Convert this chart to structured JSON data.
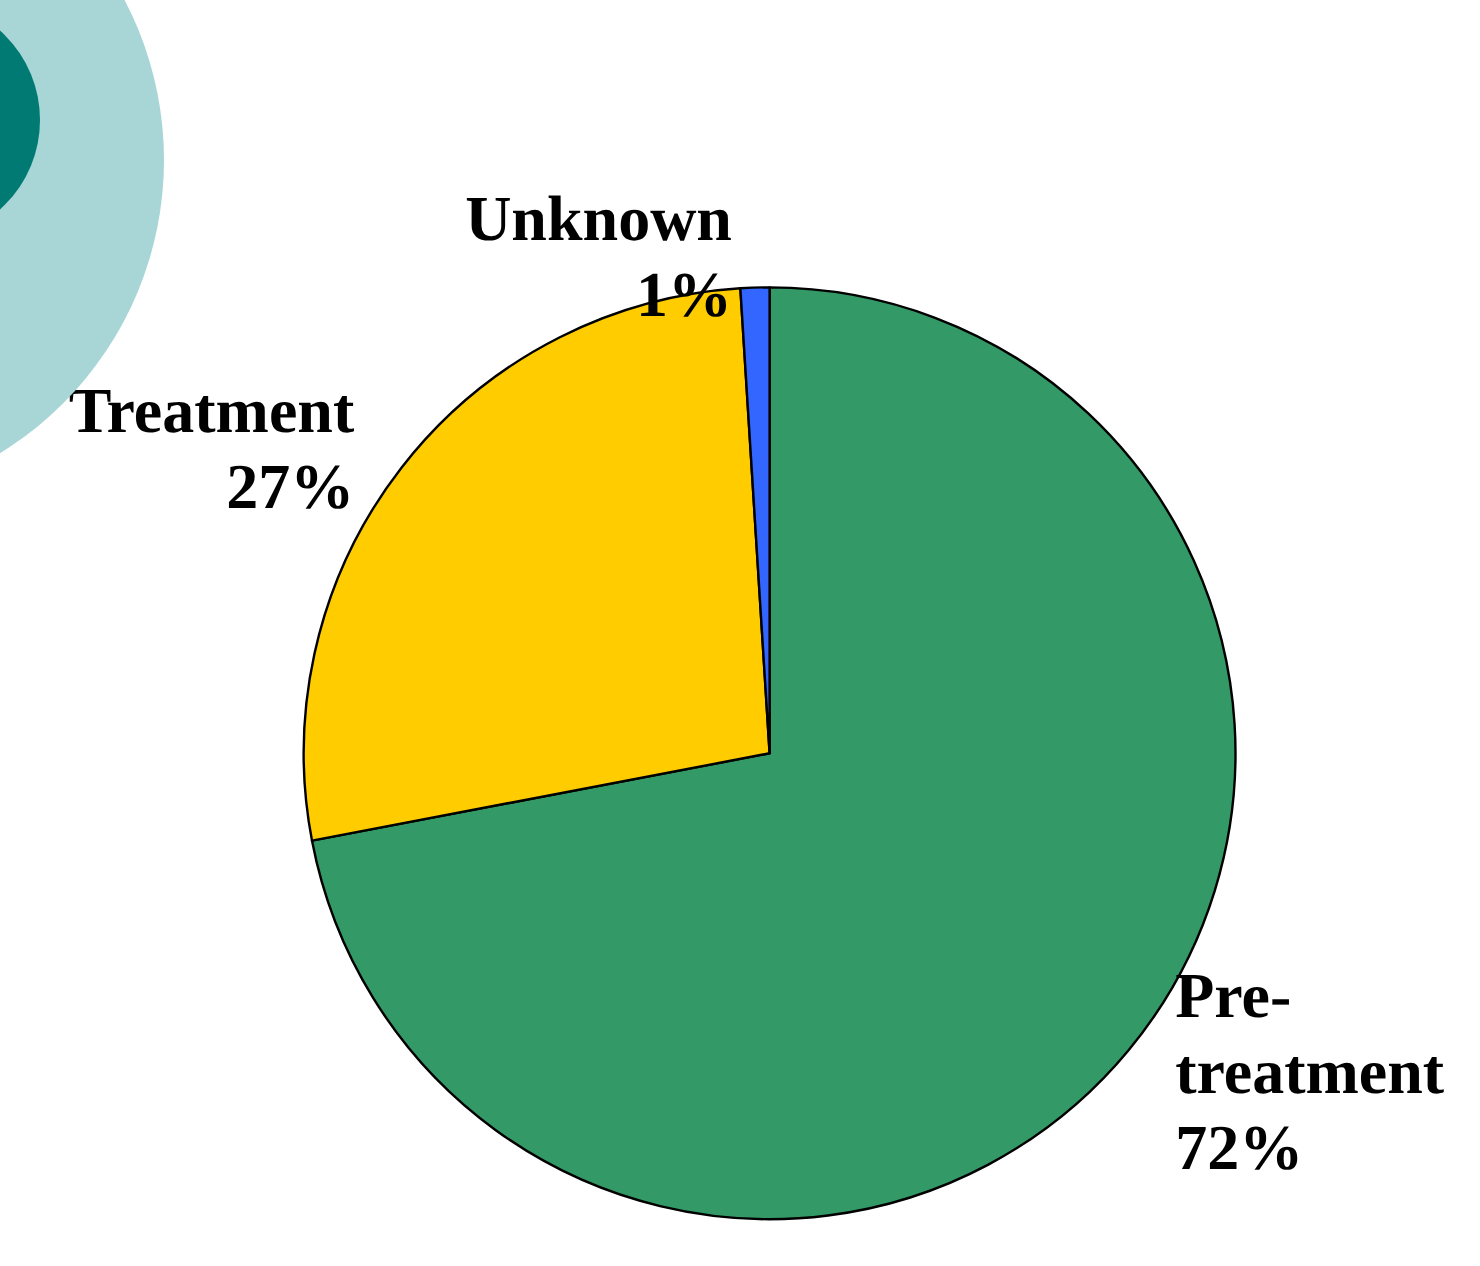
{
  "chart_data": {
    "type": "pie",
    "categories": [
      "Pre-treatment",
      "Treatment",
      "Unknown"
    ],
    "values": [
      72,
      27,
      1
    ],
    "value_labels": [
      "72%",
      "27%",
      "1%"
    ],
    "colors": [
      "#339966",
      "#ffcc00",
      "#3366ff"
    ]
  }
}
